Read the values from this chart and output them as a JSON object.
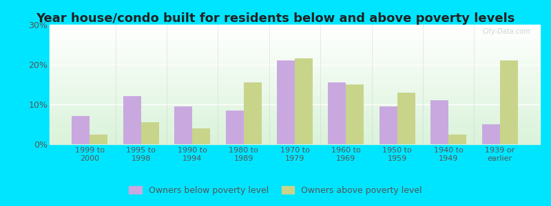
{
  "title": "Year house/condo built for residents below and above poverty levels",
  "categories": [
    "1999 to\n2000",
    "1995 to\n1998",
    "1990 to\n1994",
    "1980 to\n1989",
    "1970 to\n1979",
    "1960 to\n1969",
    "1950 to\n1959",
    "1940 to\n1949",
    "1939 or\nearlier"
  ],
  "below_poverty": [
    7.0,
    12.0,
    9.5,
    8.5,
    21.0,
    15.5,
    9.5,
    11.0,
    5.0
  ],
  "above_poverty": [
    2.5,
    5.5,
    4.0,
    15.5,
    21.5,
    15.0,
    13.0,
    2.5,
    21.0
  ],
  "below_color": "#c9a8e0",
  "above_color": "#c8d48a",
  "ylim": [
    0,
    30
  ],
  "yticks": [
    0,
    10,
    20,
    30
  ],
  "ytick_labels": [
    "0%",
    "10%",
    "20%",
    "30%"
  ],
  "outer_background": "#00e5ff",
  "title_fontsize": 13,
  "watermark": "City-Data.com",
  "legend_below_label": "Owners below poverty level",
  "legend_above_label": "Owners above poverty level"
}
